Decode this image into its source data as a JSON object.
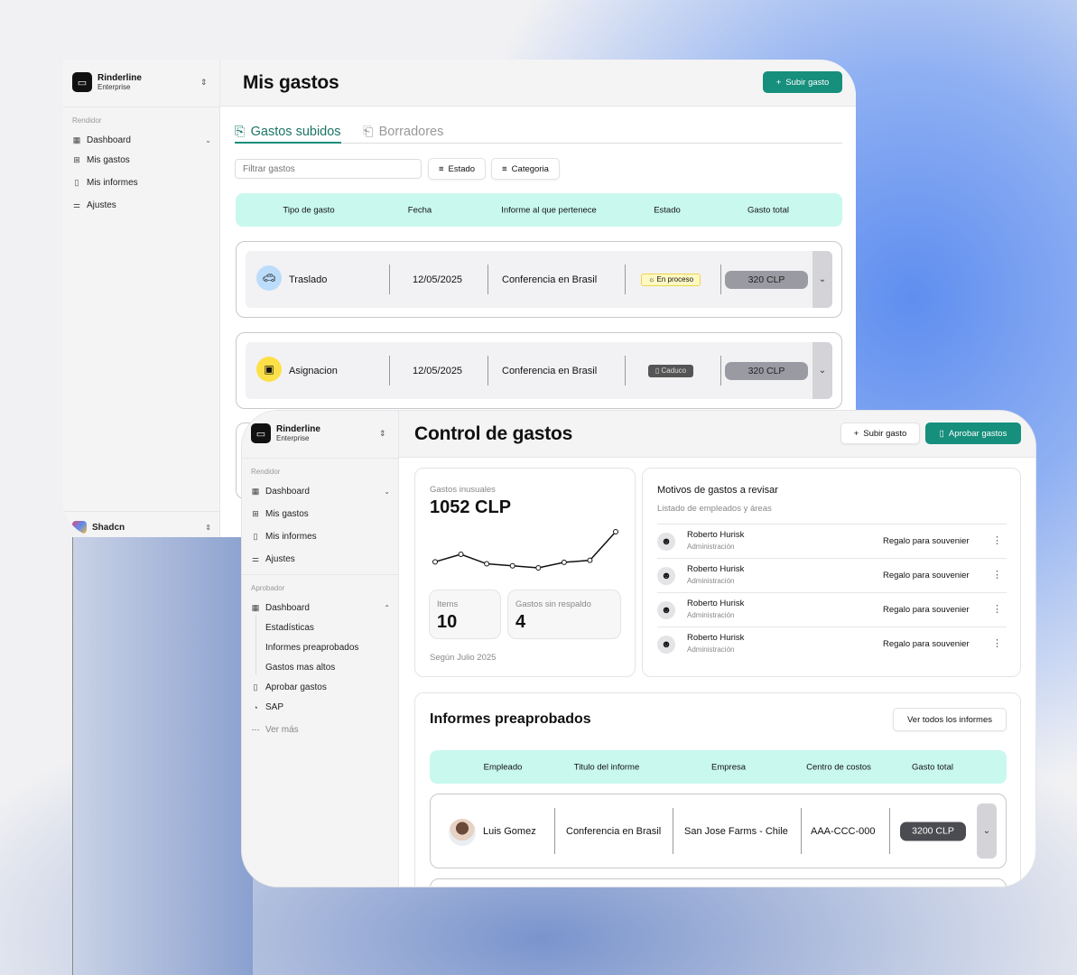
{
  "window1": {
    "brand": {
      "name": "Rinderline",
      "plan": "Enterprise"
    },
    "sidebar": {
      "section": "Rendidor",
      "items": [
        {
          "label": "Dashboard",
          "icon": "grid-icon"
        },
        {
          "label": "Mis gastos",
          "icon": "receipt-plus-icon"
        },
        {
          "label": "Mis informes",
          "icon": "file-edit-icon"
        },
        {
          "label": "Ajustes",
          "icon": "sliders-icon"
        }
      ],
      "footer": {
        "name": "Shadcn"
      }
    },
    "header": {
      "title": "Mis gastos",
      "upload_button": "Subir gasto"
    },
    "tabs": [
      {
        "label": "Gastos subidos",
        "active": true
      },
      {
        "label": "Borradores",
        "active": false
      }
    ],
    "filter": {
      "placeholder": "Filtrar gastos",
      "estado": "Estado",
      "categoria": "Categoria"
    },
    "table": {
      "columns": [
        "Tipo de gasto",
        "Fecha",
        "Informe al que pertenece",
        "Estado",
        "Gasto total"
      ],
      "rows": [
        {
          "type": "Traslado",
          "icon": "car-icon",
          "icon_bg": "#bcdcfb",
          "date": "12/05/2025",
          "report": "Conferencia en Brasil",
          "status": "En proceso",
          "status_style": "pending",
          "total": "320 CLP"
        },
        {
          "type": "Asignacion",
          "icon": "wallet-icon",
          "icon_bg": "#fde047",
          "date": "12/05/2025",
          "report": "Conferencia en Brasil",
          "status": "Caduco",
          "status_style": "expired",
          "total": "320 CLP"
        }
      ]
    }
  },
  "window2": {
    "brand": {
      "name": "Rinderline",
      "plan": "Enterprise"
    },
    "sidebar": {
      "section1": "Rendidor",
      "items1": [
        {
          "label": "Dashboard"
        },
        {
          "label": "Mis gastos"
        },
        {
          "label": "Mis informes"
        },
        {
          "label": "Ajustes"
        }
      ],
      "section2": "Aprobador",
      "dashboard": "Dashboard",
      "subitems": [
        "Estadísticas",
        "Informes preaprobados",
        "Gastos mas altos"
      ],
      "items2": [
        {
          "label": "Aprobar gastos"
        },
        {
          "label": "SAP"
        }
      ],
      "more": "Ver más"
    },
    "header": {
      "title": "Control de gastos",
      "upload_button": "Subir gasto",
      "approve_button": "Aprobar gastos"
    },
    "unusual": {
      "label": "Gastos inusuales",
      "value": "1052 CLP",
      "sparkline": [
        3,
        4.5,
        2.6,
        2.2,
        1.8,
        2.9,
        3.3,
        9
      ],
      "items_label": "Items",
      "items_value": "10",
      "nobacking_label": "Gastos sin respaldo",
      "nobacking_value": "4",
      "footnote": "Según Julio 2025"
    },
    "review": {
      "title": "Motivos de gastos a revisar",
      "subtitle": "Listado de empleados y áreas",
      "rows": [
        {
          "name": "Roberto Hurisk",
          "area": "Administración",
          "reason": "Regalo para souvenier"
        },
        {
          "name": "Roberto Hurisk",
          "area": "Administración",
          "reason": "Regalo para souvenier"
        },
        {
          "name": "Roberto Hurisk",
          "area": "Administración",
          "reason": "Regalo para souvenier"
        },
        {
          "name": "Roberto Hurisk",
          "area": "Administración",
          "reason": "Regalo para souvenier"
        }
      ]
    },
    "preapproved": {
      "title": "Informes preaprobados",
      "view_all": "Ver todos los informes",
      "columns": [
        "Empleado",
        "Titulo del informe",
        "Empresa",
        "Centro de costos",
        "Gasto total"
      ],
      "rows": [
        {
          "employee": "Luis Gomez",
          "report": "Conferencia en Brasil",
          "company": "San Jose Farms - Chile",
          "cost_center": "AAA-CCC-000",
          "total": "3200 CLP"
        }
      ]
    }
  },
  "colors": {
    "accent": "#168f7c",
    "table_header": "#c9f8ee"
  }
}
